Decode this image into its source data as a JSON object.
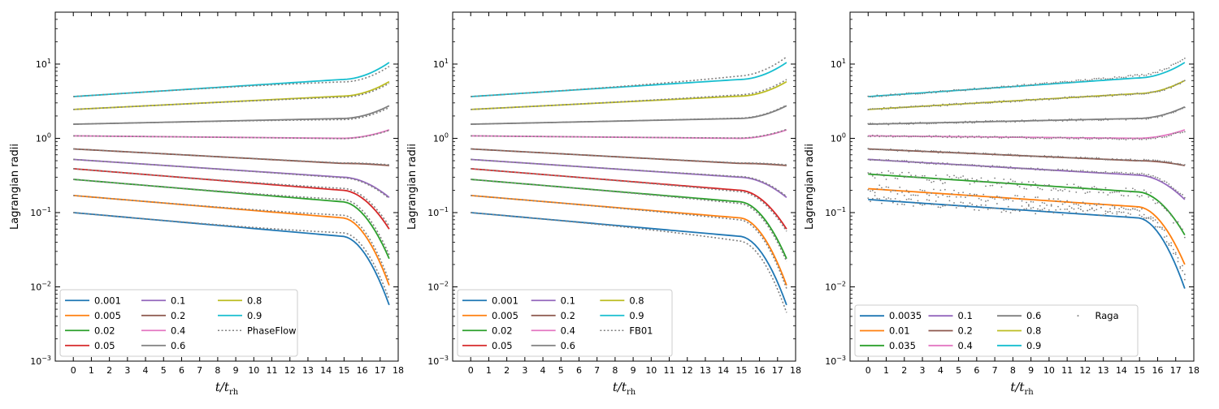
{
  "figure": {
    "colors": {
      "0.001": "#1f77b4",
      "0.0035": "#1f77b4",
      "0.005": "#ff7f0e",
      "0.01": "#ff7f0e",
      "0.02": "#2ca02c",
      "0.035": "#2ca02c",
      "0.05": "#d62728",
      "0.1": "#9467bd",
      "0.2": "#8c564b",
      "0.4": "#e377c2",
      "0.6": "#7f7f7f",
      "0.8": "#bcbd22",
      "0.9": "#17becf",
      "reference": "#7f7f7f"
    }
  },
  "chart_data": [
    {
      "type": "line",
      "title": "",
      "ylabel": "Lagrangian radii",
      "xlabel": "t/t_rh",
      "xlabel_main": "t/t",
      "xlabel_sub": "rh",
      "yscale": "log",
      "ylim": [
        0.001,
        50
      ],
      "xlim": [
        -1,
        18
      ],
      "xticks": [
        "0",
        "1",
        "2",
        "3",
        "4",
        "5",
        "6",
        "7",
        "8",
        "9",
        "10",
        "11",
        "12",
        "13",
        "14",
        "15",
        "16",
        "17",
        "18"
      ],
      "yticks": [
        "10^-3",
        "10^-2",
        "10^-1",
        "10^0",
        "10^1"
      ],
      "legend_location": "lower-left",
      "reference_label": "PhaseFlow",
      "t_end": 17.5,
      "series": [
        {
          "name": "0.001",
          "start": 0.1,
          "mid": 0.048,
          "end": 0.0057,
          "ref_end": 0.0068
        },
        {
          "name": "0.005",
          "start": 0.17,
          "mid": 0.085,
          "end": 0.0105,
          "ref_end": 0.012
        },
        {
          "name": "0.02",
          "start": 0.28,
          "mid": 0.14,
          "end": 0.024,
          "ref_end": 0.027
        },
        {
          "name": "0.05",
          "start": 0.39,
          "mid": 0.2,
          "end": 0.06,
          "ref_end": 0.066
        },
        {
          "name": "0.1",
          "start": 0.52,
          "mid": 0.3,
          "end": 0.16,
          "ref_end": 0.155
        },
        {
          "name": "0.2",
          "start": 0.72,
          "mid": 0.46,
          "end": 0.43,
          "ref_end": 0.44
        },
        {
          "name": "0.4",
          "start": 1.08,
          "mid": 1.0,
          "end": 1.3,
          "ref_end": 1.28
        },
        {
          "name": "0.6",
          "start": 1.55,
          "mid": 1.85,
          "end": 2.75,
          "ref_end": 2.6
        },
        {
          "name": "0.8",
          "start": 2.45,
          "mid": 3.7,
          "end": 5.8,
          "ref_end": 5.5
        },
        {
          "name": "0.9",
          "start": 3.65,
          "mid": 6.2,
          "end": 10.5,
          "ref_end": 9.3
        }
      ]
    },
    {
      "type": "line",
      "title": "",
      "ylabel": "Lagrangian radii",
      "xlabel": "t/t_rh",
      "xlabel_main": "t/t",
      "xlabel_sub": "rh",
      "yscale": "log",
      "ylim": [
        0.001,
        50
      ],
      "xlim": [
        -1,
        18
      ],
      "xticks": [
        "0",
        "1",
        "2",
        "3",
        "4",
        "5",
        "6",
        "7",
        "8",
        "9",
        "10",
        "11",
        "12",
        "13",
        "14",
        "15",
        "16",
        "17",
        "18"
      ],
      "yticks": [
        "10^-3",
        "10^-2",
        "10^-1",
        "10^0",
        "10^1"
      ],
      "legend_location": "lower-left",
      "reference_label": "FB01",
      "t_end": 17.5,
      "series": [
        {
          "name": "0.001",
          "start": 0.1,
          "mid": 0.048,
          "end": 0.0057,
          "ref_end": 0.0045
        },
        {
          "name": "0.005",
          "start": 0.17,
          "mid": 0.085,
          "end": 0.0105,
          "ref_end": 0.0095
        },
        {
          "name": "0.02",
          "start": 0.28,
          "mid": 0.14,
          "end": 0.024,
          "ref_end": 0.022
        },
        {
          "name": "0.05",
          "start": 0.39,
          "mid": 0.2,
          "end": 0.06,
          "ref_end": 0.056
        },
        {
          "name": "0.1",
          "start": 0.52,
          "mid": 0.3,
          "end": 0.16,
          "ref_end": 0.165
        },
        {
          "name": "0.2",
          "start": 0.72,
          "mid": 0.46,
          "end": 0.43,
          "ref_end": 0.44
        },
        {
          "name": "0.4",
          "start": 1.08,
          "mid": 1.0,
          "end": 1.3,
          "ref_end": 1.32
        },
        {
          "name": "0.6",
          "start": 1.55,
          "mid": 1.85,
          "end": 2.75,
          "ref_end": 2.8
        },
        {
          "name": "0.8",
          "start": 2.45,
          "mid": 3.7,
          "end": 5.8,
          "ref_end": 6.2
        },
        {
          "name": "0.9",
          "start": 3.65,
          "mid": 6.2,
          "end": 10.5,
          "ref_end": 12.5
        }
      ]
    },
    {
      "type": "line",
      "title": "",
      "ylabel": "Lagrangian radii",
      "xlabel": "t/t_rh",
      "xlabel_main": "t/t",
      "xlabel_sub": "rh",
      "yscale": "log",
      "ylim": [
        0.001,
        50
      ],
      "xlim": [
        -1,
        18
      ],
      "xticks": [
        "0",
        "1",
        "2",
        "3",
        "4",
        "5",
        "6",
        "7",
        "8",
        "9",
        "10",
        "11",
        "12",
        "13",
        "14",
        "15",
        "16",
        "17",
        "18"
      ],
      "yticks": [
        "10^-3",
        "10^-2",
        "10^-1",
        "10^0",
        "10^1"
      ],
      "legend_location": "lower-left",
      "reference_label": "Raga",
      "t_end": 17.5,
      "series": [
        {
          "name": "0.0035",
          "start": 0.15,
          "mid": 0.085,
          "end": 0.0095,
          "ref_end": 0.013
        },
        {
          "name": "0.01",
          "start": 0.21,
          "mid": 0.12,
          "end": 0.02,
          "ref_end": 0.015
        },
        {
          "name": "0.035",
          "start": 0.33,
          "mid": 0.19,
          "end": 0.05,
          "ref_end": 0.048
        },
        {
          "name": "0.1",
          "start": 0.52,
          "mid": 0.32,
          "end": 0.15,
          "ref_end": 0.16
        },
        {
          "name": "0.2",
          "start": 0.72,
          "mid": 0.5,
          "end": 0.43,
          "ref_end": 0.44
        },
        {
          "name": "0.4",
          "start": 1.08,
          "mid": 1.0,
          "end": 1.3,
          "ref_end": 1.25
        },
        {
          "name": "0.6",
          "start": 1.55,
          "mid": 1.85,
          "end": 2.65,
          "ref_end": 2.6
        },
        {
          "name": "0.8",
          "start": 2.45,
          "mid": 4.0,
          "end": 6.0,
          "ref_end": 5.9
        },
        {
          "name": "0.9",
          "start": 3.65,
          "mid": 6.5,
          "end": 10.5,
          "ref_end": 12.0
        }
      ]
    }
  ]
}
